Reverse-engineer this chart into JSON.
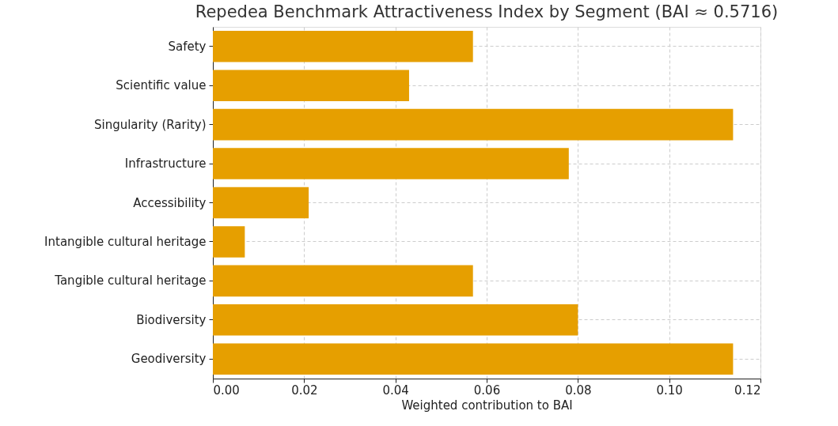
{
  "chart_data": {
    "type": "bar",
    "orientation": "horizontal",
    "title": "Repedea Benchmark Attractiveness Index by Segment (BAI ≈ 0.5716)",
    "xlabel": "Weighted contribution to BAI",
    "categories": [
      "Safety",
      "Scientific value",
      "Singularity (Rarity)",
      "Infrastructure",
      "Accessibility",
      "Intangible cultural heritage",
      "Tangible cultural heritage",
      "Biodiversity",
      "Geodiversity"
    ],
    "values": [
      0.057,
      0.043,
      0.114,
      0.078,
      0.021,
      0.007,
      0.057,
      0.08,
      0.114
    ],
    "color": "#e69f00",
    "xlim": [
      0,
      0.12
    ],
    "xticks": [
      {
        "value": 0,
        "label": "0.00"
      },
      0.02,
      0.04,
      0.06,
      0.08,
      {
        "value": 0.1,
        "label": "0.10"
      },
      0.12
    ],
    "grid": true
  }
}
